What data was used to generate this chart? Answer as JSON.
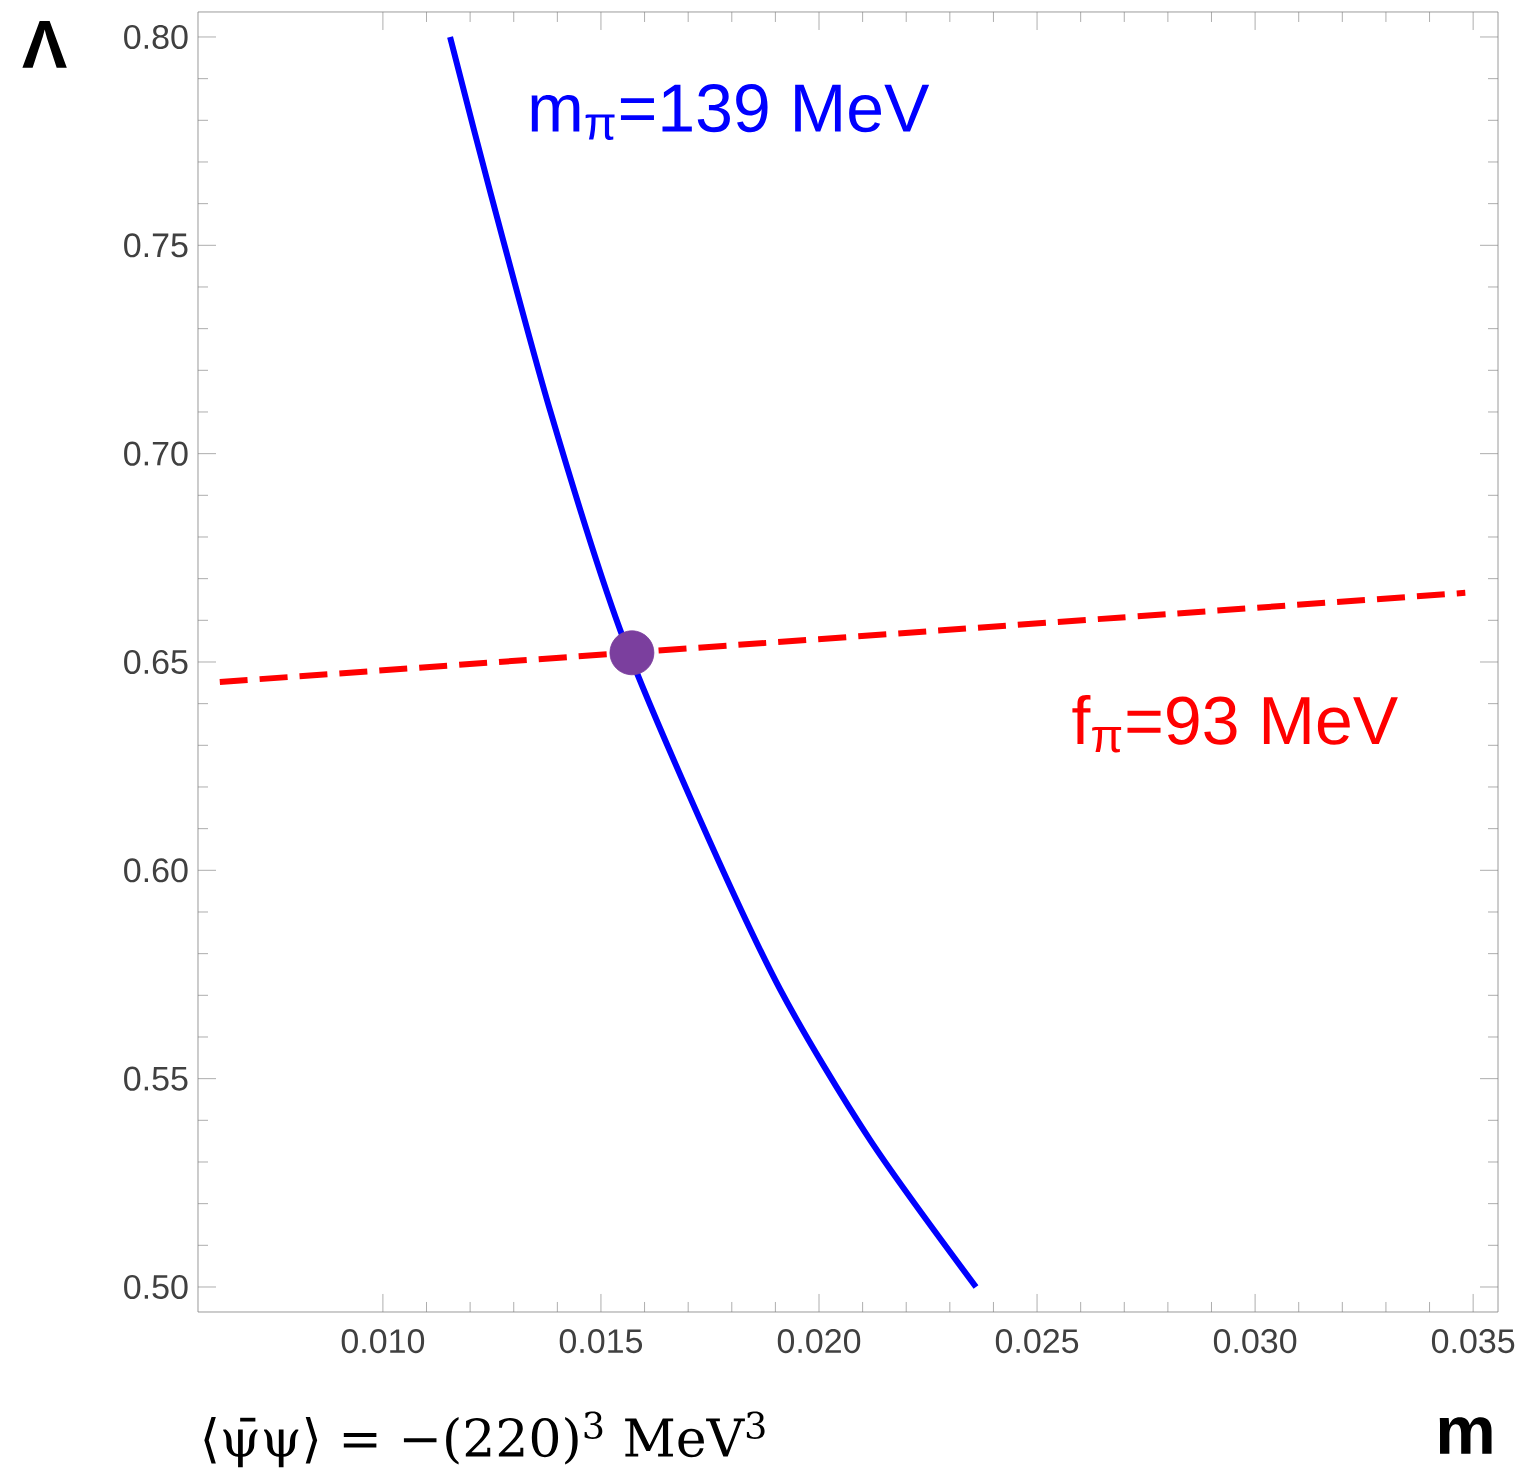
{
  "chart_data": {
    "type": "line",
    "xlabel": "m",
    "ylabel": "Λ",
    "annotations": [
      "⟨ψ̄ψ⟩ = −(220)$^{3}$ MeV$^{3}$"
    ],
    "xlim": [
      0.00576,
      0.03557
    ],
    "ylim": [
      0.494,
      0.806
    ],
    "xticks": [
      {
        "value": 0.01,
        "label": "0.010"
      },
      {
        "value": 0.015,
        "label": "0.015"
      },
      {
        "value": 0.02,
        "label": "0.020"
      },
      {
        "value": 0.025,
        "label": "0.025"
      },
      {
        "value": 0.03,
        "label": "0.030"
      },
      {
        "value": 0.035,
        "label": "0.035"
      }
    ],
    "yticks": [
      {
        "value": 0.5,
        "label": "0.50"
      },
      {
        "value": 0.55,
        "label": "0.55"
      },
      {
        "value": 0.6,
        "label": "0.60"
      },
      {
        "value": 0.65,
        "label": "0.65"
      },
      {
        "value": 0.7,
        "label": "0.70"
      },
      {
        "value": 0.75,
        "label": "0.75"
      },
      {
        "value": 0.8,
        "label": "0.80"
      }
    ],
    "series": [
      {
        "name": "m$_{π}$=139 MeV",
        "color": "#0000ff",
        "line_style": "solid",
        "x": [
          0.01154,
          0.01245,
          0.01383,
          0.01544,
          0.01727,
          0.01911,
          0.02117,
          0.0236
        ],
        "values": [
          0.8,
          0.7633,
          0.7105,
          0.6577,
          0.6122,
          0.5714,
          0.5353,
          0.5
        ]
      },
      {
        "name": "f$_{π}$=93 MeV",
        "color": "#ff0000",
        "line_style": "dashed",
        "x": [
          0.00626,
          0.03482
        ],
        "values": [
          0.6452,
          0.6666
        ]
      },
      {
        "type": "scatter",
        "color": "#7b3f9e",
        "x": [
          0.01571
        ],
        "values": [
          0.6522
        ]
      }
    ]
  }
}
